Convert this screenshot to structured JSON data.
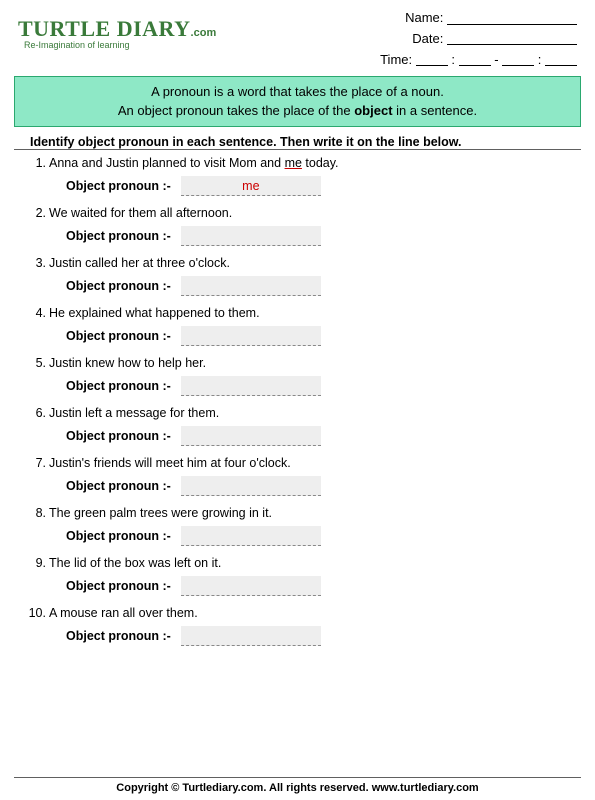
{
  "logo": {
    "main": "TURTLE DIARY",
    "com": ".com",
    "tagline": "Re-Imagination of learning"
  },
  "student": {
    "name_label": "Name:",
    "date_label": "Date:",
    "time_label": "Time:"
  },
  "definition": {
    "line1": "A pronoun is a word that takes the place of a noun.",
    "line2a": "An object pronoun takes the place of the ",
    "line2b": "object",
    "line2c": " in a sentence."
  },
  "instructions": "Identify object pronoun in each sentence. Then write it on the line below.",
  "answer_label": "Object pronoun :-",
  "questions": [
    {
      "num": "1.",
      "pre": "Anna and Justin planned to visit Mom and ",
      "hl": "me",
      "post": " today.",
      "ans": "me"
    },
    {
      "num": "2.",
      "pre": "We waited for them all afternoon.",
      "hl": "",
      "post": "",
      "ans": ""
    },
    {
      "num": "3.",
      "pre": "Justin called her at three o'clock.",
      "hl": "",
      "post": "",
      "ans": ""
    },
    {
      "num": "4.",
      "pre": "He explained what happened to them.",
      "hl": "",
      "post": "",
      "ans": ""
    },
    {
      "num": "5.",
      "pre": "Justin knew how to help her.",
      "hl": "",
      "post": "",
      "ans": ""
    },
    {
      "num": "6.",
      "pre": "Justin left a message for them.",
      "hl": "",
      "post": "",
      "ans": ""
    },
    {
      "num": "7.",
      "pre": "Justin's friends will meet him at four o'clock.",
      "hl": "",
      "post": "",
      "ans": ""
    },
    {
      "num": "8.",
      "pre": "The green palm trees were growing in it.",
      "hl": "",
      "post": "",
      "ans": ""
    },
    {
      "num": "9.",
      "pre": "The lid of the box was left on it.",
      "hl": "",
      "post": "",
      "ans": ""
    },
    {
      "num": "10.",
      "pre": "A mouse ran all over them.",
      "hl": "",
      "post": "",
      "ans": ""
    }
  ],
  "footer": "Copyright © Turtlediary.com. All rights reserved. www.turtlediary.com"
}
